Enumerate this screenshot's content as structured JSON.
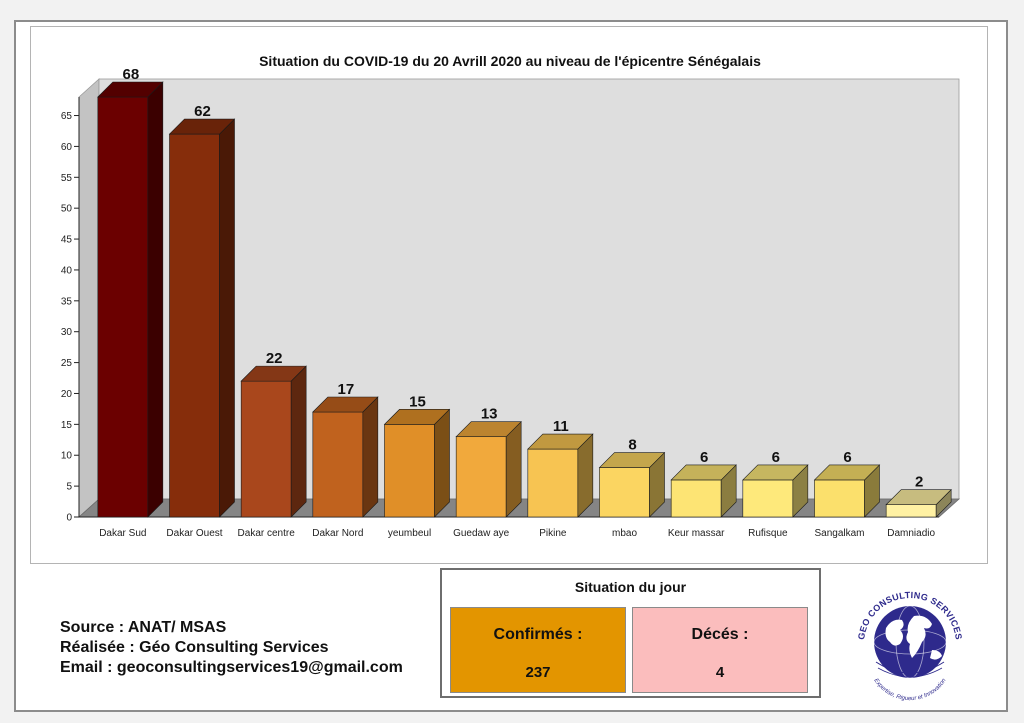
{
  "chart_data": {
    "type": "bar",
    "title": "Situation du COVID-19 du 20 Avrill 2020 au niveau de l'épicentre Sénégalais",
    "xlabel": "",
    "ylabel": "",
    "categories": [
      "Dakar Sud",
      "Dakar Ouest",
      "Dakar centre",
      "Dakar Nord",
      "yeumbeul",
      "Guedaw aye",
      "Pikine",
      "mbao",
      "Keur massar",
      "Rufisque",
      "Sangalkam",
      "Damniadio"
    ],
    "values": [
      68,
      62,
      22,
      17,
      15,
      13,
      11,
      8,
      6,
      6,
      6,
      2
    ],
    "ylim": [
      0,
      68
    ],
    "yticks": [
      0,
      5,
      10,
      15,
      20,
      25,
      30,
      35,
      40,
      45,
      50,
      55,
      60,
      65
    ],
    "grid": false,
    "legend": "none",
    "data_labels": true,
    "style": "3d-bar",
    "bar_colors": [
      "#6b0000",
      "#862d0b",
      "#a9471c",
      "#c0621e",
      "#e08f28",
      "#f1a93c",
      "#f7c452",
      "#fbd561",
      "#fde474",
      "#fee97b",
      "#fbe06c",
      "#fff1a3"
    ],
    "wall_color": "#dedede",
    "floor_color": "#858585"
  },
  "credits": {
    "source": "Source : ANAT/ MSAS",
    "made_by": "Réalisée : Géo Consulting Services",
    "email": "Email : geoconsultingservices19@gmail.com"
  },
  "daily": {
    "title": "Situation du jour",
    "confirmed_label": "Confirmés :",
    "confirmed_value": "237",
    "deaths_label": "Décés :",
    "deaths_value": "4",
    "confirmed_color": "#e39500",
    "deaths_color": "#fbbdbd"
  },
  "logo": {
    "icon": "globe-icon",
    "arc_text": "GEO CONSULTING SERVICES",
    "tagline": "Expertise, Rigueur et Innovation",
    "color": "#2e2a8c"
  }
}
